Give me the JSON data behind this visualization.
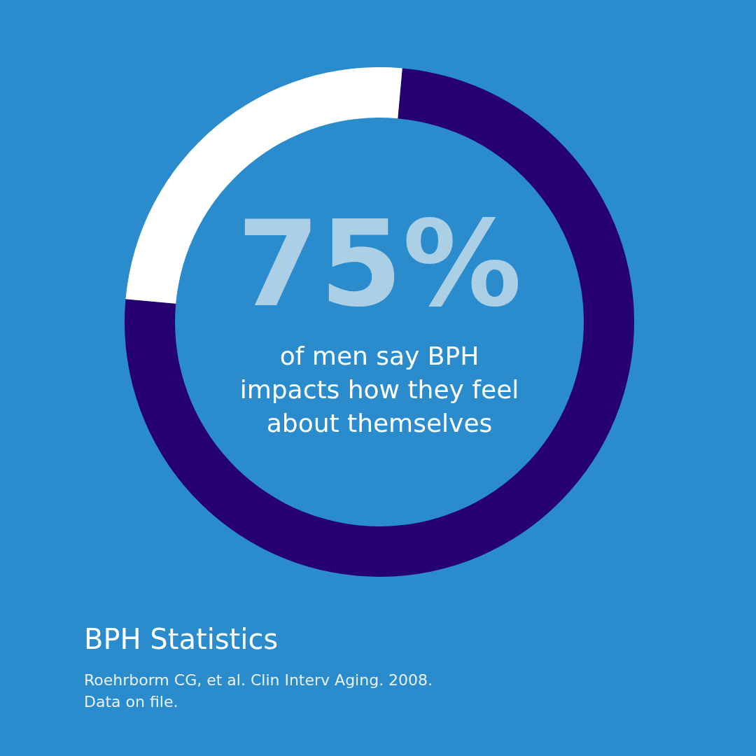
{
  "chart_data": {
    "type": "donut",
    "title": "BPH Statistics",
    "categories": [
      null,
      null
    ],
    "values": [
      75,
      25
    ],
    "colors": [
      "#25006e",
      "#ffffff"
    ],
    "value_labels": [
      "75%",
      null
    ],
    "annotations": [
      "of men say BPH\nimpacts how they feel\nabout themselves",
      "Roehrborm CG, et al. Clin Interv Aging. 2008.",
      "Data on file."
    ]
  }
}
